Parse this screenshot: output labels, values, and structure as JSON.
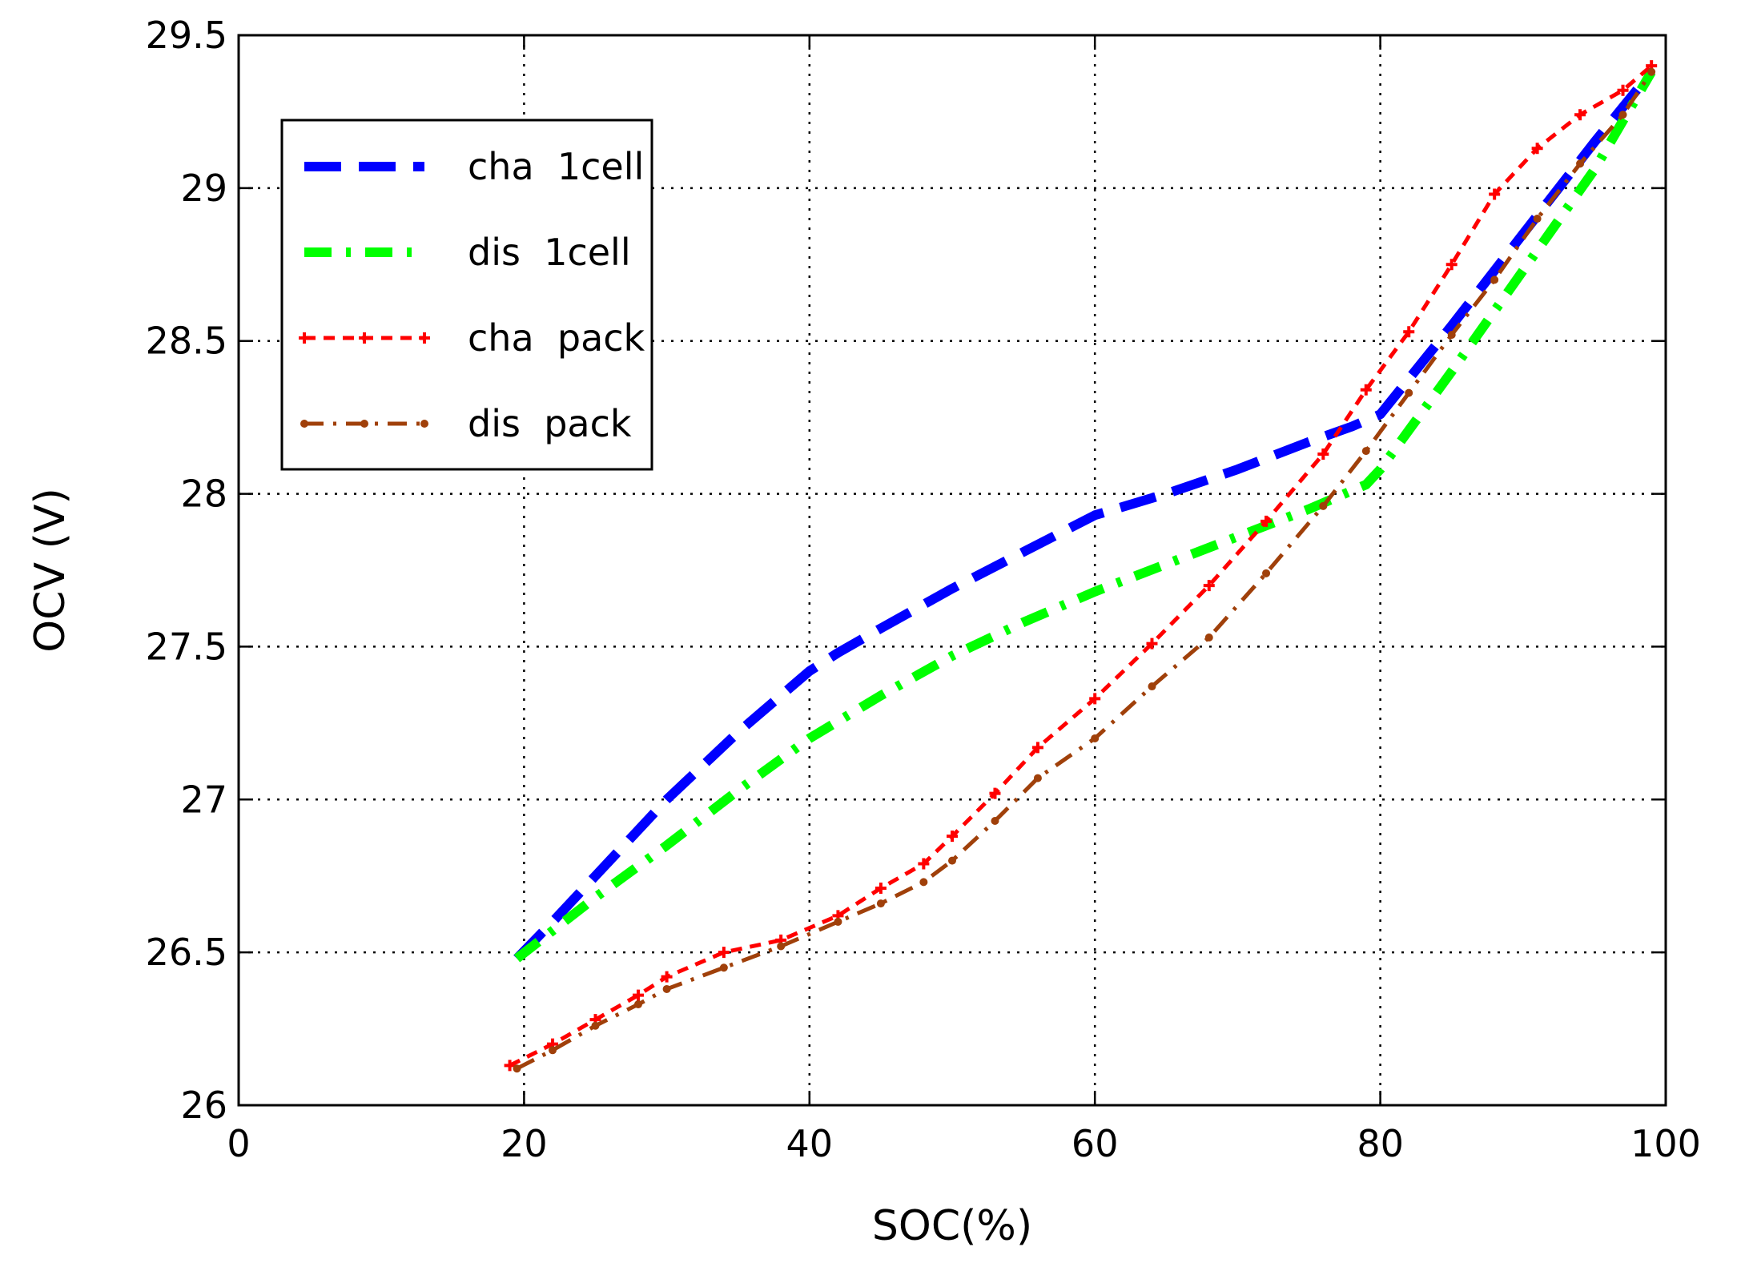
{
  "chart_data": {
    "type": "line",
    "title": "",
    "xlabel": "SOC(%)",
    "ylabel": "OCV (V)",
    "xlim": [
      0,
      100
    ],
    "ylim": [
      26,
      29.5
    ],
    "xticks": [
      0,
      20,
      40,
      60,
      80,
      100
    ],
    "yticks": [
      26,
      26.5,
      27,
      27.5,
      28,
      28.5,
      29,
      29.5
    ],
    "xtick_labels": [
      "0",
      "20",
      "40",
      "60",
      "80",
      "100"
    ],
    "ytick_labels": [
      "26",
      "26.5",
      "27",
      "27.5",
      "28",
      "28.5",
      "29",
      "29.5"
    ],
    "grid": true,
    "legend_position": "top-left",
    "series": [
      {
        "name": "cha  1cell",
        "color": "#0000ff",
        "style": "dashed",
        "x": [
          19.5,
          22,
          25,
          30,
          35,
          39,
          40,
          42,
          45,
          50,
          55,
          60,
          65,
          70,
          75,
          78,
          80,
          85,
          90,
          95,
          99
        ],
        "y": [
          26.48,
          26.6,
          26.75,
          27.0,
          27.22,
          27.38,
          27.42,
          27.48,
          27.56,
          27.69,
          27.81,
          27.93,
          28.0,
          28.08,
          28.17,
          28.22,
          28.26,
          28.55,
          28.85,
          29.15,
          29.38
        ]
      },
      {
        "name": "dis  1cell",
        "color": "#00ff00",
        "style": "dashdot",
        "x": [
          19.5,
          25,
          30,
          35,
          40,
          45,
          50,
          55,
          60,
          65,
          70,
          75,
          79,
          80,
          85,
          90,
          95,
          99
        ],
        "y": [
          26.48,
          26.68,
          26.85,
          27.03,
          27.2,
          27.34,
          27.47,
          27.58,
          27.68,
          27.77,
          27.86,
          27.95,
          28.03,
          28.08,
          28.4,
          28.73,
          29.06,
          29.38
        ]
      },
      {
        "name": "cha  pack",
        "color": "#ff0000",
        "style": "dotted-marker",
        "x": [
          19,
          22,
          25,
          28,
          30,
          34,
          38,
          42,
          45,
          48,
          50,
          53,
          56,
          60,
          64,
          68,
          72,
          76,
          79,
          82,
          85,
          88,
          91,
          94,
          97,
          99
        ],
        "y": [
          26.13,
          26.2,
          26.28,
          26.36,
          26.42,
          26.5,
          26.54,
          26.62,
          26.71,
          26.79,
          26.88,
          27.02,
          27.17,
          27.33,
          27.51,
          27.7,
          27.91,
          28.13,
          28.34,
          28.53,
          28.75,
          28.98,
          29.13,
          29.24,
          29.32,
          29.4
        ]
      },
      {
        "name": "dis  pack",
        "color": "#a0400a",
        "style": "dashdot-marker",
        "x": [
          19.5,
          22,
          25,
          28,
          30,
          34,
          38,
          42,
          45,
          48,
          50,
          53,
          56,
          60,
          64,
          68,
          72,
          76,
          79,
          82,
          85,
          88,
          91,
          94,
          97,
          99
        ],
        "y": [
          26.12,
          26.18,
          26.26,
          26.33,
          26.38,
          26.45,
          26.52,
          26.6,
          26.66,
          26.73,
          26.8,
          26.93,
          27.07,
          27.2,
          27.37,
          27.53,
          27.74,
          27.96,
          28.14,
          28.33,
          28.52,
          28.7,
          28.9,
          29.08,
          29.24,
          29.38
        ]
      }
    ]
  }
}
